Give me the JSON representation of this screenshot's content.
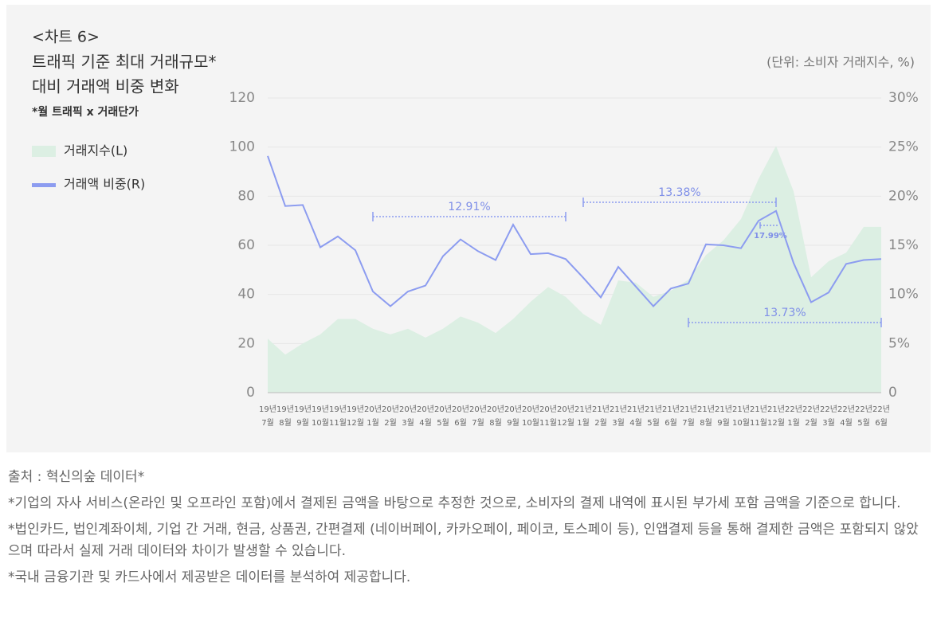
{
  "chart_data": {
    "type": "area-line",
    "label": "<차트 6>",
    "title": [
      "트래픽 기준 최대 거래규모*",
      "대비 거래액 비중 변화"
    ],
    "subtitle": "*월 트래픽 x 거래단가",
    "unit": "(단위: 소비자 거래지수, %)",
    "categories": [
      [
        "19년",
        "7월"
      ],
      [
        "19년",
        "8월"
      ],
      [
        "19년",
        "9월"
      ],
      [
        "19년",
        "10월"
      ],
      [
        "19년",
        "11월"
      ],
      [
        "19년",
        "12월"
      ],
      [
        "20년",
        "1월"
      ],
      [
        "20년",
        "2월"
      ],
      [
        "20년",
        "3월"
      ],
      [
        "20년",
        "4월"
      ],
      [
        "20년",
        "5월"
      ],
      [
        "20년",
        "6월"
      ],
      [
        "20년",
        "7월"
      ],
      [
        "20년",
        "8월"
      ],
      [
        "20년",
        "9월"
      ],
      [
        "20년",
        "10월"
      ],
      [
        "20년",
        "11월"
      ],
      [
        "20년",
        "12월"
      ],
      [
        "21년",
        "1월"
      ],
      [
        "21년",
        "2월"
      ],
      [
        "21년",
        "3월"
      ],
      [
        "21년",
        "4월"
      ],
      [
        "21년",
        "5월"
      ],
      [
        "21년",
        "6월"
      ],
      [
        "21년",
        "7월"
      ],
      [
        "21년",
        "8월"
      ],
      [
        "21년",
        "9월"
      ],
      [
        "21년",
        "10월"
      ],
      [
        "21년",
        "11월"
      ],
      [
        "21년",
        "12월"
      ],
      [
        "22년",
        "1월"
      ],
      [
        "22년",
        "2월"
      ],
      [
        "22년",
        "3월"
      ],
      [
        "22년",
        "4월"
      ],
      [
        "22년",
        "5월"
      ],
      [
        "22년",
        "6월"
      ]
    ],
    "series": [
      {
        "name": "거래지수(L)",
        "color": "#dcefe3",
        "values": [
          22,
          15.5,
          20,
          23.7,
          30,
          30,
          26,
          23.7,
          26,
          22.4,
          26,
          31,
          28.5,
          24.3,
          30,
          37,
          43,
          39,
          32,
          27.6,
          45.7,
          44.8,
          39,
          41.5,
          46,
          56,
          62,
          70.7,
          87,
          100.5,
          82,
          47,
          53.5,
          57,
          67.5,
          67.5
        ]
      },
      {
        "name": "거래액 비중(R)",
        "color": "#8c9cf0",
        "axis": "y2",
        "values": [
          24.1,
          19.0,
          19.1,
          14.8,
          15.9,
          14.5,
          10.3,
          8.8,
          10.3,
          10.9,
          13.9,
          15.6,
          14.4,
          13.5,
          17.1,
          14.1,
          14.2,
          13.6,
          11.7,
          9.7,
          12.8,
          10.8,
          8.8,
          10.6,
          11.1,
          15.1,
          15.0,
          14.7,
          17.5,
          18.5,
          13.2,
          9.2,
          10.2,
          13.1,
          13.5,
          13.6
        ]
      }
    ],
    "ylim": [
      0,
      120
    ],
    "yticks": [
      0,
      20,
      40,
      60,
      80,
      100,
      120
    ],
    "y2lim": [
      0,
      30
    ],
    "y2ticks": [
      0,
      {
        "value": 5,
        "label": "5%"
      },
      {
        "value": 10,
        "label": "10%"
      },
      {
        "value": 15,
        "label": "15%"
      },
      {
        "value": 20,
        "label": "20%"
      },
      {
        "value": 25,
        "label": "25%"
      },
      {
        "value": 30,
        "label": "30%"
      }
    ],
    "grid": true,
    "annotations": [
      {
        "label": "12.91%",
        "span": [
          6,
          17
        ]
      },
      {
        "label": "13.38%",
        "span": [
          18,
          29
        ]
      },
      {
        "label": "17.99%",
        "span": [
          28,
          29
        ]
      },
      {
        "label": "13.73%",
        "span": [
          24,
          35
        ]
      }
    ]
  },
  "notes": [
    "출처 : 혁신의숲 데이터*",
    "*기업의 자사 서비스(온라인 및 오프라인 포함)에서 결제된 금액을 바탕으로 추정한 것으로, 소비자의 결제 내역에 표시된 부가세 포함 금액을 기준으로 합니다.",
    "*법인카드, 법인계좌이체, 기업 간 거래, 현금, 상품권, 간편결제 (네이버페이, 카카오페이, 페이코, 토스페이 등), 인앱결제 등을 통해 결제한 금액은 포함되지 않았으며 따라서 실제 거래 데이터와 차이가 발생할 수 있습니다.",
    "*국내 금융기관 및 카드사에서 제공받은 데이터를 분석하여 제공합니다."
  ]
}
